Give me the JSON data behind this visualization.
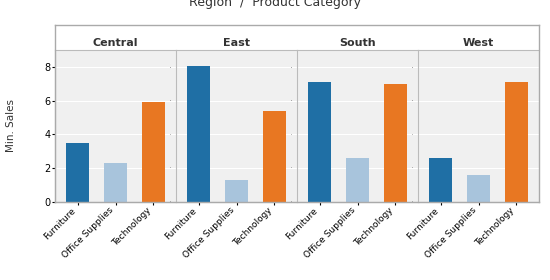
{
  "title": "Region  /  Product Category",
  "ylabel": "Min. Sales",
  "regions": [
    "Central",
    "East",
    "South",
    "West"
  ],
  "categories": [
    "Furniture",
    "Office Supplies",
    "Technology"
  ],
  "values": {
    "Central": [
      3.5,
      2.3,
      5.9
    ],
    "East": [
      8.1,
      1.3,
      5.4
    ],
    "South": [
      7.1,
      2.6,
      7.0
    ],
    "West": [
      2.6,
      1.6,
      7.1
    ]
  },
  "colors": {
    "Furniture": "#1F6FA5",
    "Office Supplies": "#A8C4DC",
    "Technology": "#E87722"
  },
  "background_color": "#FFFFFF",
  "plot_bg_color": "#F0F0F0",
  "ylim": [
    0,
    9
  ],
  "yticks": [
    0,
    2,
    4,
    6,
    8
  ],
  "bar_width": 0.6,
  "title_fontsize": 9,
  "label_fontsize": 6.5,
  "ylabel_fontsize": 7.5,
  "tick_fontsize": 7,
  "region_label_fontsize": 8,
  "divider_color": "#BBBBBB",
  "grid_color": "#FFFFFF",
  "border_color": "#AAAAAA"
}
